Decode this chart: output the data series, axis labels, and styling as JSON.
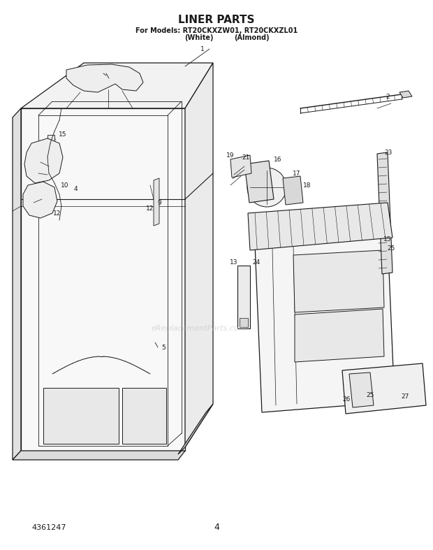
{
  "title": "LINER PARTS",
  "subtitle_line1": "For Models: RT20CKXZW01, RT20CKXZL01",
  "subtitle_line2_left": "(White)",
  "subtitle_line2_right": "(Almond)",
  "part_number": "4361247",
  "page_number": "4",
  "watermark": "eReplacementParts.com",
  "background_color": "#ffffff",
  "line_color": "#1a1a1a",
  "title_fontsize": 11,
  "subtitle_fontsize": 6.5,
  "label_fontsize": 6.5,
  "watermark_fontsize": 8
}
